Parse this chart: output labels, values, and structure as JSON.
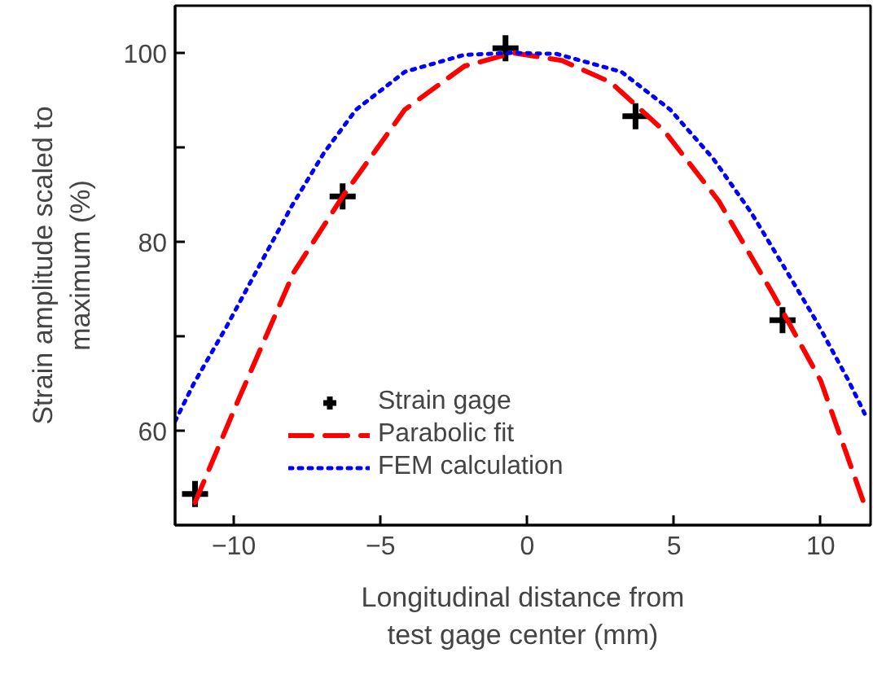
{
  "chart_data": {
    "type": "line",
    "xlabel": "Longitudinal distance from test gage center (mm)",
    "ylabel": "Strain amplitude scaled to maximum (%)",
    "xlim": [
      -12,
      11.7
    ],
    "ylim": [
      50,
      105
    ],
    "xticks": [
      -10,
      -5,
      0,
      5,
      10
    ],
    "yticks": [
      60,
      {
        "value": 70,
        "label": null
      },
      80,
      {
        "value": 90,
        "label": null
      },
      100
    ],
    "grid": false,
    "legend": "bottom left",
    "series": [
      {
        "name": "Strain gage",
        "type": "scatter",
        "marker": "cross",
        "color": "#000000",
        "x": [
          -11.32,
          -6.29,
          -0.74,
          3.69,
          8.7
        ],
        "values": [
          53.3,
          84.8,
          100.5,
          93.3,
          71.7
        ]
      },
      {
        "name": "Parabolic fit",
        "line_style": "dashed",
        "color": "#ff0000",
        "x": [
          -11.32,
          -9.88,
          -7.95,
          -6.29,
          -4.17,
          -2.14,
          -0.48,
          1.18,
          2.84,
          4.68,
          6.53,
          8.37,
          10.0,
          11.5
        ],
        "values": [
          52.4,
          63.0,
          76.8,
          84.8,
          94.0,
          98.6,
          100.0,
          99.2,
          96.9,
          91.7,
          84.3,
          74.5,
          65.3,
          52.1
        ]
      },
      {
        "name": "FEM calculation",
        "line_style": "dotted",
        "color": "#0000ff",
        "x": [
          -12.0,
          -11.36,
          -10.25,
          -9.14,
          -8.04,
          -6.93,
          -5.83,
          -4.17,
          -2.14,
          -0.48,
          1.0,
          3.21,
          4.87,
          6.34,
          7.63,
          8.74,
          9.85,
          10.95,
          11.5
        ],
        "values": [
          61.0,
          65.0,
          71.0,
          77.4,
          83.7,
          89.4,
          94.0,
          98.0,
          99.8,
          100.0,
          99.9,
          98.0,
          94.0,
          88.8,
          83.1,
          77.4,
          71.6,
          65.3,
          61.8
        ]
      }
    ]
  }
}
